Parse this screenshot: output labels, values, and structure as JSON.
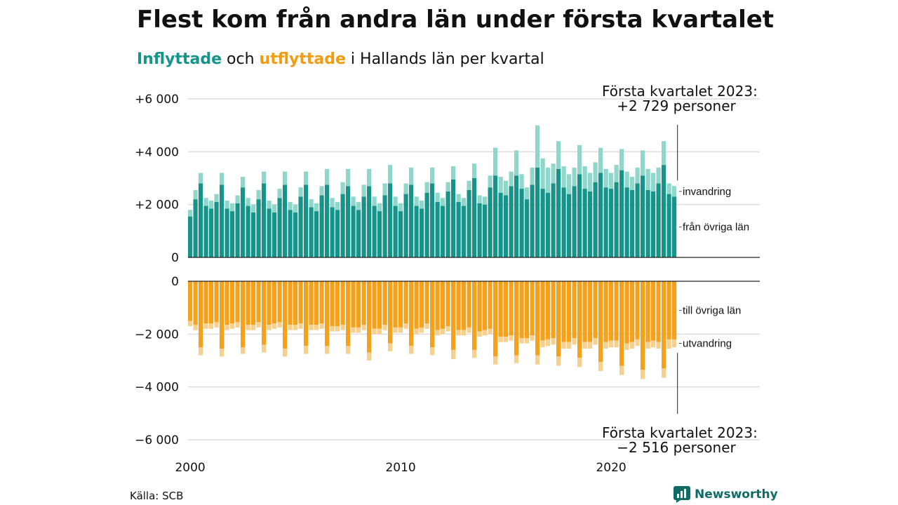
{
  "header": {
    "title": "Flest kom från andra län under första kvartalet",
    "subtitle_in": "Inflyttade",
    "subtitle_och": "och",
    "subtitle_out": "utflyttade",
    "subtitle_rest": "i Hallands län per kvartal"
  },
  "annotations": {
    "top_line1": "Första kvartalet 2023:",
    "top_line2": "+2 729 personer",
    "bottom_line1": "Första kvartalet 2023:",
    "bottom_line2": "−2 516 personer"
  },
  "footer": {
    "source": "Källa: SCB",
    "brand": "Newsworthy"
  },
  "colors": {
    "in_dark": "#17948a",
    "in_light": "#8fd6cb",
    "out_dark": "#f5a11c",
    "out_light": "#f8d08e",
    "grid": "#dddddd",
    "axis": "#222222"
  },
  "chart_data": {
    "type": "bar",
    "stacked": true,
    "x_labels": [
      "2000",
      "2010",
      "2020"
    ],
    "y_ticks_top": [
      "+6 000",
      "+4 000",
      "+2 000",
      "0"
    ],
    "y_ticks_bottom": [
      "0",
      "−2 000",
      "−4 000",
      "−6 000"
    ],
    "ylim_top": [
      0,
      6000
    ],
    "ylim_bottom": [
      -6000,
      0
    ],
    "grid": true,
    "series_labels": {
      "fran_ovriga_lan": "från övriga län",
      "invandring": "invandring",
      "till_ovriga_lan": "till övriga län",
      "utvandring": "utvandring"
    },
    "quarters": [
      "2000Q1",
      "2000Q2",
      "2000Q3",
      "2000Q4",
      "2001Q1",
      "2001Q2",
      "2001Q3",
      "2001Q4",
      "2002Q1",
      "2002Q2",
      "2002Q3",
      "2002Q4",
      "2003Q1",
      "2003Q2",
      "2003Q3",
      "2003Q4",
      "2004Q1",
      "2004Q2",
      "2004Q3",
      "2004Q4",
      "2005Q1",
      "2005Q2",
      "2005Q3",
      "2005Q4",
      "2006Q1",
      "2006Q2",
      "2006Q3",
      "2006Q4",
      "2007Q1",
      "2007Q2",
      "2007Q3",
      "2007Q4",
      "2008Q1",
      "2008Q2",
      "2008Q3",
      "2008Q4",
      "2009Q1",
      "2009Q2",
      "2009Q3",
      "2009Q4",
      "2010Q1",
      "2010Q2",
      "2010Q3",
      "2010Q4",
      "2011Q1",
      "2011Q2",
      "2011Q3",
      "2011Q4",
      "2012Q1",
      "2012Q2",
      "2012Q3",
      "2012Q4",
      "2013Q1",
      "2013Q2",
      "2013Q3",
      "2013Q4",
      "2014Q1",
      "2014Q2",
      "2014Q3",
      "2014Q4",
      "2015Q1",
      "2015Q2",
      "2015Q3",
      "2015Q4",
      "2016Q1",
      "2016Q2",
      "2016Q3",
      "2016Q4",
      "2017Q1",
      "2017Q2",
      "2017Q3",
      "2017Q4",
      "2018Q1",
      "2018Q2",
      "2018Q3",
      "2018Q4",
      "2019Q1",
      "2019Q2",
      "2019Q3",
      "2019Q4",
      "2020Q1",
      "2020Q2",
      "2020Q3",
      "2020Q4",
      "2021Q1",
      "2021Q2",
      "2021Q3",
      "2021Q4",
      "2022Q1",
      "2022Q2",
      "2022Q3",
      "2022Q4",
      "2023Q1"
    ],
    "fran_ovriga_lan": [
      1550,
      2200,
      2800,
      1950,
      1850,
      2100,
      2750,
      1850,
      1750,
      2050,
      2650,
      1950,
      1700,
      2200,
      2800,
      1850,
      1700,
      2250,
      2750,
      1800,
      1700,
      2300,
      2750,
      1900,
      1750,
      2350,
      2750,
      1900,
      1800,
      2400,
      2700,
      1950,
      1800,
      2300,
      2700,
      1950,
      1750,
      2350,
      2800,
      1950,
      1750,
      2400,
      2750,
      1950,
      1850,
      2450,
      2800,
      2100,
      1950,
      2500,
      2950,
      2100,
      1950,
      2550,
      3000,
      2050,
      2000,
      2650,
      3100,
      2450,
      2350,
      2700,
      3100,
      2600,
      2200,
      2750,
      3400,
      2600,
      2450,
      2800,
      3350,
      2650,
      2400,
      2700,
      3150,
      2600,
      2500,
      2850,
      3200,
      2650,
      2600,
      2850,
      3300,
      2650,
      2550,
      2800,
      3100,
      2550,
      2500,
      2800,
      3500,
      2400,
      2300
    ],
    "invandring": [
      250,
      350,
      400,
      300,
      300,
      300,
      450,
      300,
      300,
      300,
      400,
      300,
      300,
      350,
      450,
      300,
      300,
      350,
      500,
      300,
      300,
      350,
      500,
      300,
      300,
      350,
      600,
      350,
      300,
      450,
      650,
      350,
      300,
      450,
      650,
      350,
      300,
      450,
      700,
      350,
      300,
      400,
      650,
      350,
      300,
      400,
      600,
      350,
      300,
      350,
      500,
      300,
      300,
      350,
      550,
      300,
      300,
      450,
      1050,
      600,
      550,
      550,
      950,
      550,
      450,
      650,
      1600,
      1150,
      950,
      750,
      1050,
      800,
      750,
      700,
      1100,
      850,
      700,
      750,
      950,
      700,
      600,
      650,
      800,
      600,
      500,
      600,
      950,
      800,
      700,
      600,
      900,
      400,
      400
    ],
    "till_ovriga_lan": [
      1500,
      1650,
      2500,
      1600,
      1600,
      1550,
      2550,
      1650,
      1600,
      1550,
      2500,
      1650,
      1650,
      1550,
      2400,
      1650,
      1600,
      1550,
      2550,
      1650,
      1650,
      1600,
      2450,
      1650,
      1650,
      1600,
      2450,
      1700,
      1700,
      1650,
      2450,
      1750,
      1750,
      1650,
      2700,
      1800,
      1800,
      1650,
      2350,
      1750,
      1750,
      1600,
      2450,
      1800,
      1750,
      1600,
      2500,
      1850,
      1800,
      1700,
      2600,
      1850,
      1850,
      1750,
      2600,
      1900,
      1850,
      1800,
      2850,
      2100,
      2100,
      2050,
      2800,
      2150,
      2150,
      2050,
      2800,
      2250,
      2200,
      2150,
      2850,
      2300,
      2300,
      2150,
      2900,
      2300,
      2300,
      2150,
      3050,
      2300,
      2250,
      2250,
      3200,
      2350,
      2300,
      2200,
      3350,
      2300,
      2250,
      2300,
      3300,
      2200,
      2200
    ],
    "utvandring": [
      200,
      200,
      300,
      200,
      200,
      200,
      300,
      200,
      200,
      200,
      250,
      200,
      200,
      200,
      300,
      200,
      200,
      200,
      300,
      200,
      200,
      200,
      300,
      200,
      200,
      200,
      300,
      200,
      200,
      200,
      300,
      200,
      200,
      200,
      300,
      200,
      200,
      200,
      300,
      200,
      200,
      200,
      300,
      200,
      200,
      200,
      300,
      200,
      200,
      200,
      350,
      200,
      200,
      200,
      300,
      200,
      200,
      200,
      300,
      200,
      200,
      200,
      300,
      200,
      200,
      200,
      350,
      250,
      250,
      250,
      350,
      250,
      250,
      250,
      350,
      250,
      250,
      250,
      350,
      250,
      250,
      250,
      350,
      250,
      250,
      250,
      350,
      250,
      250,
      250,
      350,
      350,
      300
    ]
  }
}
